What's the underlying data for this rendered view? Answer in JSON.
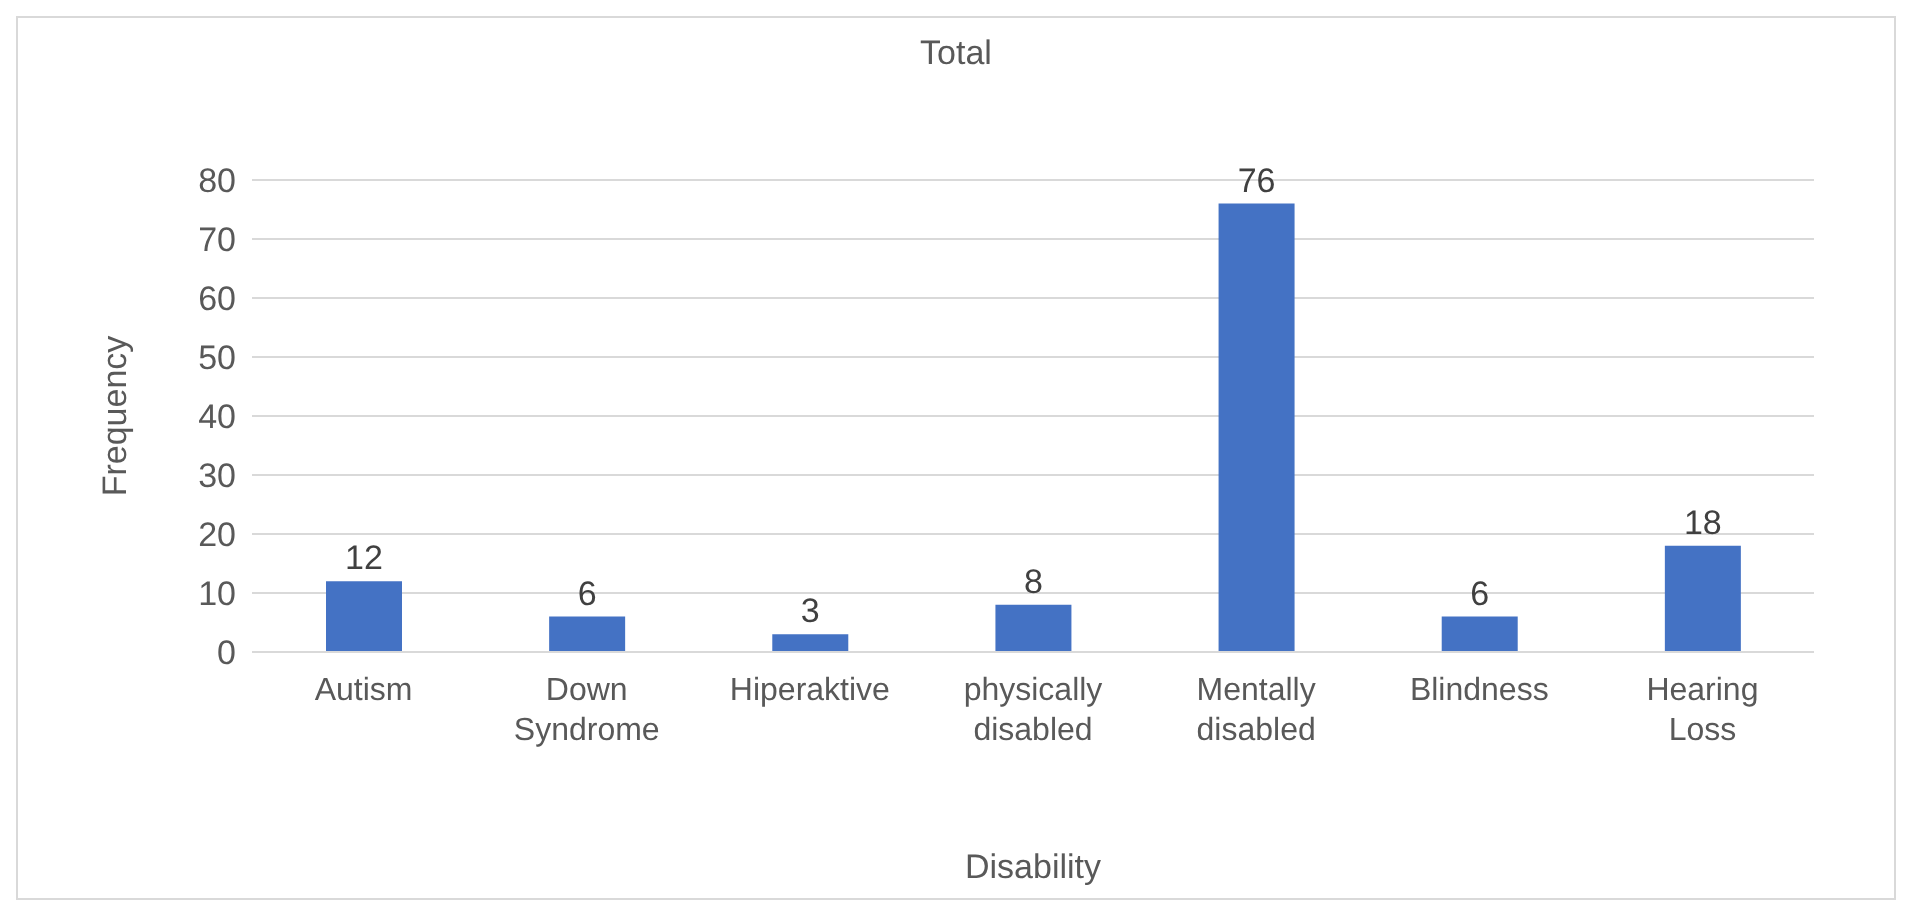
{
  "chart_data": {
    "type": "bar",
    "title": "Total",
    "xlabel": "Disability",
    "ylabel": "Frequency",
    "categories": [
      "Autism",
      "Down Syndrome",
      "Hiperaktive",
      "physically disabled",
      "Mentally disabled",
      "Blindness",
      "Hearing Loss"
    ],
    "values": [
      12,
      6,
      3,
      8,
      76,
      6,
      18
    ],
    "color": "#4472c4",
    "ylim": [
      0,
      80
    ],
    "yticks": [
      0,
      10,
      20,
      30,
      40,
      50,
      60,
      70,
      80
    ],
    "grid": "y",
    "data_labels": true,
    "legend": false
  }
}
